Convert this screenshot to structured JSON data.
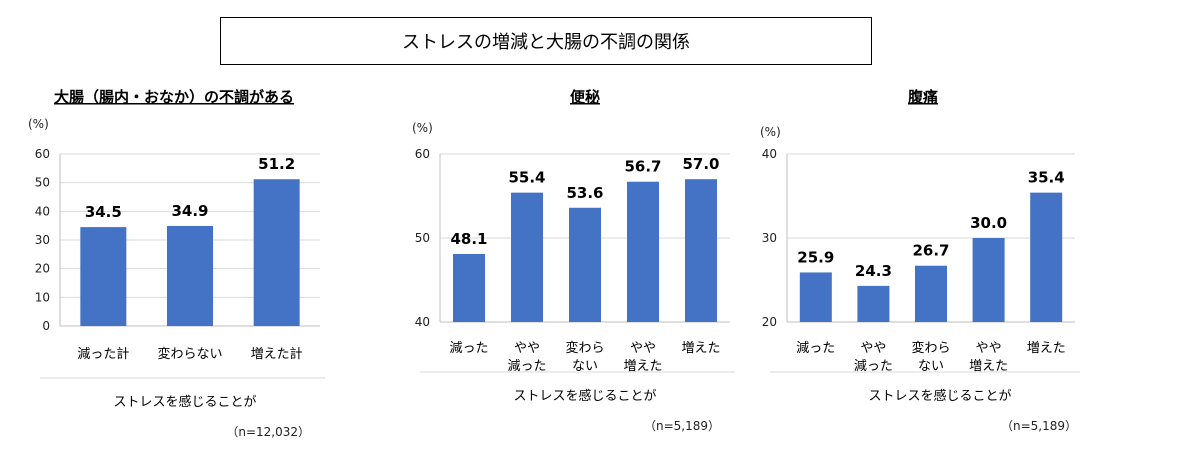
{
  "main_title": "ストレスの増減と大腸の不調の関係",
  "colors": {
    "bar": "#4472C4",
    "grid": "#d9d9d9",
    "axis": "#bfbfbf"
  },
  "chart_data": [
    {
      "type": "bar",
      "title": "大腸（腸内・おなか）の不調がある",
      "unit": "(%)",
      "categories": [
        [
          "減った計"
        ],
        [
          "変わらない"
        ],
        [
          "増えた計"
        ]
      ],
      "values": [
        34.5,
        34.9,
        51.2
      ],
      "value_labels": [
        "34.5",
        "34.9",
        "51.2"
      ],
      "ylim": [
        0,
        60
      ],
      "yticks": [
        0,
        10,
        20,
        30,
        40,
        50,
        60
      ],
      "xlabel": "ストレスを感じることが",
      "n_label": "（n=12,032）",
      "grid": true
    },
    {
      "type": "bar",
      "title": "便秘",
      "unit": "(%)",
      "categories": [
        [
          "減った"
        ],
        [
          "やや",
          "減った"
        ],
        [
          "変わら",
          "ない"
        ],
        [
          "やや",
          "増えた"
        ],
        [
          "増えた"
        ]
      ],
      "values": [
        48.1,
        55.4,
        53.6,
        56.7,
        57.0
      ],
      "value_labels": [
        "48.1",
        "55.4",
        "53.6",
        "56.7",
        "57.0"
      ],
      "ylim": [
        40,
        60
      ],
      "yticks": [
        40,
        50,
        60
      ],
      "xlabel": "ストレスを感じることが",
      "n_label": "（n=5,189）",
      "grid": true
    },
    {
      "type": "bar",
      "title": "腹痛",
      "unit": "(%)",
      "categories": [
        [
          "減った"
        ],
        [
          "やや",
          "減った"
        ],
        [
          "変わら",
          "ない"
        ],
        [
          "やや",
          "増えた"
        ],
        [
          "増えた"
        ]
      ],
      "values": [
        25.9,
        24.3,
        26.7,
        30.0,
        35.4
      ],
      "value_labels": [
        "25.9",
        "24.3",
        "26.7",
        "30.0",
        "35.4"
      ],
      "ylim": [
        20,
        40
      ],
      "yticks": [
        20,
        30,
        40
      ],
      "xlabel": "ストレスを感じることが",
      "n_label": "（n=5,189）",
      "grid": true
    }
  ]
}
